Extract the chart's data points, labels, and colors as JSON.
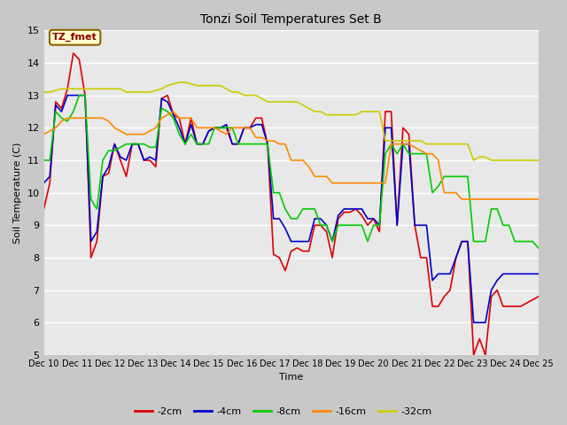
{
  "title": "Tonzi Soil Temperatures Set B",
  "xlabel": "Time",
  "ylabel": "Soil Temperature (C)",
  "ylim": [
    5.0,
    15.0
  ],
  "yticks": [
    5.0,
    6.0,
    7.0,
    8.0,
    9.0,
    10.0,
    11.0,
    12.0,
    13.0,
    14.0,
    15.0
  ],
  "xtick_labels": [
    "Dec 10",
    "Dec 11",
    "Dec 12",
    "Dec 13",
    "Dec 14",
    "Dec 15",
    "Dec 16",
    "Dec 17",
    "Dec 18",
    "Dec 19",
    "Dec 20",
    "Dec 21",
    "Dec 22",
    "Dec 23",
    "Dec 24",
    "Dec 25"
  ],
  "fig_bg_color": "#c8c8c8",
  "plot_bg_color": "#e8e8e8",
  "grid_color": "#ffffff",
  "legend_label": "TZ_fmet",
  "legend_box_facecolor": "#ffffcc",
  "legend_box_edgecolor": "#8b6400",
  "legend_text_color": "#8b0000",
  "series": {
    "-2cm": {
      "color": "#dd0000",
      "lw": 1.2
    },
    "-4cm": {
      "color": "#0000cc",
      "lw": 1.2
    },
    "-8cm": {
      "color": "#00cc00",
      "lw": 1.2
    },
    "-16cm": {
      "color": "#ff8800",
      "lw": 1.2
    },
    "-32cm": {
      "color": "#cccc00",
      "lw": 1.2
    }
  },
  "legend_entries": [
    "-2cm",
    "-4cm",
    "-8cm",
    "-16cm",
    "-32cm"
  ],
  "legend_colors": [
    "#dd0000",
    "#0000cc",
    "#00cc00",
    "#ff8800",
    "#cccc00"
  ],
  "y_2cm": [
    9.5,
    10.3,
    12.8,
    12.6,
    13.2,
    14.3,
    14.1,
    13.0,
    8.0,
    8.5,
    10.5,
    10.6,
    11.5,
    11.0,
    10.5,
    11.5,
    11.5,
    11.0,
    11.0,
    10.8,
    12.9,
    13.0,
    12.4,
    12.3,
    11.5,
    12.3,
    11.5,
    11.5,
    11.9,
    12.0,
    12.0,
    12.0,
    11.5,
    11.5,
    12.0,
    12.0,
    12.3,
    12.3,
    11.5,
    8.1,
    8.0,
    7.6,
    8.2,
    8.3,
    8.2,
    8.2,
    9.0,
    9.0,
    8.8,
    8.0,
    9.2,
    9.4,
    9.4,
    9.5,
    9.3,
    9.0,
    9.2,
    8.8,
    12.5,
    12.5,
    9.0,
    12.0,
    11.8,
    9.0,
    8.0,
    8.0,
    6.5,
    6.5,
    6.8,
    7.0,
    8.0,
    8.5,
    8.5,
    5.0,
    5.5,
    5.0,
    6.8,
    7.0,
    6.5,
    6.5,
    6.5,
    6.5,
    6.6,
    6.7,
    6.8
  ],
  "y_4cm": [
    10.3,
    10.5,
    12.7,
    12.5,
    13.0,
    13.0,
    13.0,
    13.0,
    8.5,
    8.8,
    10.5,
    10.8,
    11.5,
    11.1,
    11.0,
    11.5,
    11.5,
    11.0,
    11.1,
    11.0,
    12.9,
    12.8,
    12.4,
    12.0,
    11.5,
    12.1,
    11.5,
    11.5,
    11.9,
    12.0,
    12.0,
    12.1,
    11.5,
    11.5,
    12.0,
    12.0,
    12.1,
    12.1,
    11.5,
    9.2,
    9.2,
    8.9,
    8.5,
    8.5,
    8.5,
    8.5,
    9.2,
    9.2,
    9.0,
    8.5,
    9.3,
    9.5,
    9.5,
    9.5,
    9.5,
    9.2,
    9.2,
    9.0,
    12.0,
    12.0,
    9.0,
    11.5,
    11.5,
    9.0,
    9.0,
    9.0,
    7.3,
    7.5,
    7.5,
    7.5,
    8.0,
    8.5,
    8.5,
    6.0,
    6.0,
    6.0,
    7.0,
    7.3,
    7.5,
    7.5,
    7.5,
    7.5,
    7.5,
    7.5,
    7.5
  ],
  "y_8cm": [
    11.0,
    11.0,
    12.5,
    12.3,
    12.2,
    12.5,
    13.0,
    13.0,
    9.8,
    9.5,
    11.0,
    11.3,
    11.3,
    11.4,
    11.5,
    11.5,
    11.5,
    11.5,
    11.4,
    11.4,
    12.6,
    12.5,
    12.3,
    11.8,
    11.5,
    11.8,
    11.5,
    11.5,
    11.5,
    12.0,
    12.0,
    12.0,
    12.0,
    11.5,
    11.5,
    11.5,
    11.5,
    11.5,
    11.5,
    10.0,
    10.0,
    9.5,
    9.2,
    9.2,
    9.5,
    9.5,
    9.5,
    9.0,
    9.0,
    8.5,
    9.0,
    9.0,
    9.0,
    9.0,
    9.0,
    8.5,
    9.0,
    9.0,
    11.2,
    11.5,
    11.2,
    11.5,
    11.2,
    11.2,
    11.2,
    11.2,
    10.0,
    10.2,
    10.5,
    10.5,
    10.5,
    10.5,
    10.5,
    8.5,
    8.5,
    8.5,
    9.5,
    9.5,
    9.0,
    9.0,
    8.5,
    8.5,
    8.5,
    8.5,
    8.3
  ],
  "y_16cm": [
    11.8,
    11.9,
    12.0,
    12.2,
    12.3,
    12.3,
    12.3,
    12.3,
    12.3,
    12.3,
    12.3,
    12.2,
    12.0,
    11.9,
    11.8,
    11.8,
    11.8,
    11.8,
    11.9,
    12.0,
    12.3,
    12.4,
    12.5,
    12.3,
    12.3,
    12.3,
    12.0,
    12.0,
    12.0,
    12.0,
    11.9,
    11.8,
    12.0,
    12.0,
    12.0,
    12.0,
    11.7,
    11.7,
    11.6,
    11.6,
    11.5,
    11.5,
    11.0,
    11.0,
    11.0,
    10.8,
    10.5,
    10.5,
    10.5,
    10.3,
    10.3,
    10.3,
    10.3,
    10.3,
    10.3,
    10.3,
    10.3,
    10.3,
    10.3,
    11.5,
    11.5,
    11.5,
    11.5,
    11.4,
    11.3,
    11.2,
    11.2,
    11.0,
    10.0,
    10.0,
    10.0,
    9.8,
    9.8,
    9.8,
    9.8,
    9.8,
    9.8,
    9.8,
    9.8,
    9.8,
    9.8,
    9.8,
    9.8,
    9.8,
    9.8
  ],
  "y_32cm": [
    13.1,
    13.1,
    13.15,
    13.2,
    13.2,
    13.2,
    13.2,
    13.2,
    13.2,
    13.2,
    13.2,
    13.2,
    13.2,
    13.2,
    13.1,
    13.1,
    13.1,
    13.1,
    13.1,
    13.15,
    13.2,
    13.3,
    13.35,
    13.4,
    13.4,
    13.35,
    13.3,
    13.3,
    13.3,
    13.3,
    13.3,
    13.2,
    13.1,
    13.1,
    13.0,
    13.0,
    13.0,
    12.9,
    12.8,
    12.8,
    12.8,
    12.8,
    12.8,
    12.8,
    12.7,
    12.6,
    12.5,
    12.5,
    12.4,
    12.4,
    12.4,
    12.4,
    12.4,
    12.4,
    12.5,
    12.5,
    12.5,
    12.5,
    11.6,
    11.6,
    11.6,
    11.6,
    11.6,
    11.6,
    11.6,
    11.5,
    11.5,
    11.5,
    11.5,
    11.5,
    11.5,
    11.5,
    11.5,
    11.0,
    11.1,
    11.1,
    11.0,
    11.0,
    11.0,
    11.0,
    11.0,
    11.0,
    11.0,
    11.0,
    11.0
  ]
}
